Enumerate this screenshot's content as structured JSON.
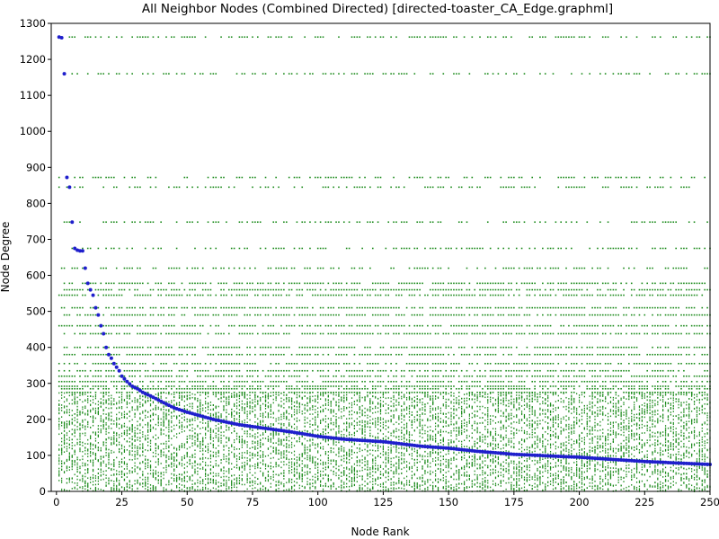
{
  "chart_data": {
    "type": "scatter",
    "title": "All Neighbor Nodes (Combined Directed) [directed-toaster_CA_Edge.graphml]",
    "xlabel": "Node Rank",
    "ylabel": "Node Degree",
    "xlim": [
      -2,
      250
    ],
    "ylim": [
      0,
      1300
    ],
    "xticks": [
      0,
      25,
      50,
      75,
      100,
      125,
      150,
      175,
      200,
      225,
      250
    ],
    "yticks": [
      0,
      100,
      200,
      300,
      400,
      500,
      600,
      700,
      800,
      900,
      1000,
      1100,
      1200,
      1300
    ],
    "grid": false,
    "legend": "none",
    "colors": {
      "degree": "#1f1fcc",
      "neighbors": "#1a8a1a"
    },
    "series": [
      {
        "role": "node-degree",
        "color": "#1f1fcc",
        "points": [
          [
            1,
            1262
          ],
          [
            2,
            1260
          ],
          [
            3,
            1160
          ],
          [
            4,
            872
          ],
          [
            5,
            845
          ],
          [
            6,
            748
          ],
          [
            7,
            675
          ],
          [
            8,
            670
          ],
          [
            9,
            668
          ],
          [
            10,
            668
          ],
          [
            11,
            620
          ],
          [
            12,
            578
          ],
          [
            13,
            560
          ],
          [
            14,
            545
          ],
          [
            15,
            510
          ],
          [
            16,
            490
          ],
          [
            17,
            460
          ],
          [
            18,
            438
          ],
          [
            19,
            400
          ],
          [
            20,
            380
          ],
          [
            21,
            370
          ],
          [
            22,
            355
          ],
          [
            23,
            345
          ],
          [
            24,
            335
          ],
          [
            25,
            320
          ],
          [
            27,
            305
          ],
          [
            29,
            292
          ],
          [
            31,
            285
          ],
          [
            33,
            275
          ],
          [
            36,
            265
          ],
          [
            40,
            250
          ],
          [
            45,
            232
          ],
          [
            50,
            220
          ],
          [
            60,
            200
          ],
          [
            70,
            185
          ],
          [
            80,
            175
          ],
          [
            90,
            165
          ],
          [
            100,
            153
          ],
          [
            110,
            145
          ],
          [
            125,
            138
          ],
          [
            140,
            125
          ],
          [
            150,
            120
          ],
          [
            160,
            112
          ],
          [
            175,
            103
          ],
          [
            190,
            98
          ],
          [
            200,
            95
          ],
          [
            210,
            90
          ],
          [
            225,
            83
          ],
          [
            240,
            78
          ],
          [
            250,
            75
          ]
        ]
      },
      {
        "role": "neighbor-degrees",
        "color": "#1a8a1a",
        "band_levels": [
          1262,
          1160,
          872,
          845,
          748,
          675,
          620,
          578,
          560,
          545,
          510,
          490,
          460,
          438,
          400,
          380,
          355,
          335,
          320,
          305,
          292,
          285,
          275
        ],
        "dense_range": [
          0,
          275
        ]
      }
    ]
  }
}
